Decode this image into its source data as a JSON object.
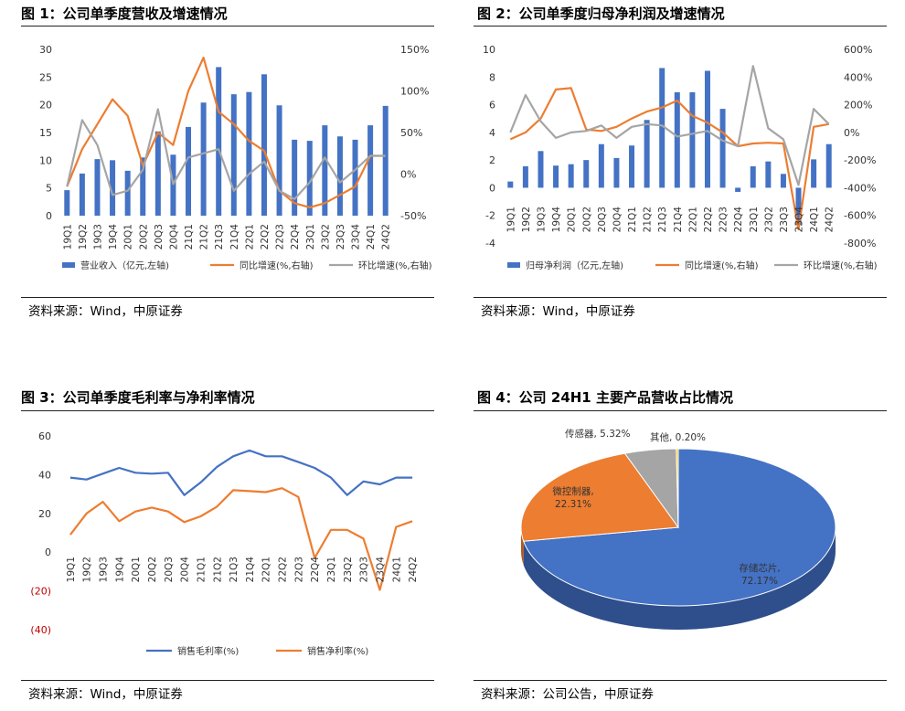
{
  "charts": [
    {
      "id": "fig1",
      "title": "图 1：公司单季度营收及增速情况",
      "source": "资料来源：Wind，中原证券",
      "chart_data": {
        "type": "bar",
        "categories": [
          "19Q1",
          "19Q2",
          "19Q3",
          "19Q4",
          "20Q1",
          "20Q2",
          "20Q3",
          "20Q4",
          "21Q1",
          "21Q2",
          "21Q3",
          "21Q4",
          "22Q1",
          "22Q2",
          "22Q3",
          "22Q4",
          "23Q1",
          "23Q2",
          "23Q3",
          "23Q4",
          "24Q1",
          "24Q2"
        ],
        "y_left": {
          "ticks": [
            "0",
            "5",
            "10",
            "15",
            "20",
            "25",
            "30"
          ],
          "range": [
            0,
            30
          ]
        },
        "y_right": {
          "ticks": [
            "-50%",
            "0%",
            "50%",
            "100%",
            "150%"
          ],
          "range": [
            -50,
            150
          ]
        },
        "series": [
          {
            "name": "营业收入（亿元,左轴)",
            "kind": "bar",
            "axis": "left",
            "color": "#4472C4",
            "values": [
              4.6,
              7.6,
              10.2,
              10.0,
              8.1,
              10.5,
              15.2,
              11.0,
              16.0,
              20.4,
              26.8,
              21.9,
              22.3,
              25.5,
              19.9,
              13.7,
              13.5,
              16.3,
              14.3,
              13.7,
              16.3,
              19.8
            ]
          },
          {
            "name": "同比增速(%,右轴)",
            "kind": "line",
            "axis": "right",
            "color": "#ED7D31",
            "values": [
              -15,
              30,
              60,
              90,
              70,
              10,
              50,
              35,
              100,
              140,
              75,
              60,
              40,
              28,
              -20,
              -35,
              -40,
              -35,
              -25,
              -15,
              22,
              22
            ]
          },
          {
            "name": "环比增速(%,右轴)",
            "kind": "line",
            "axis": "right",
            "color": "#A5A5A5",
            "values": [
              -15,
              65,
              35,
              -25,
              -20,
              5,
              78,
              -12,
              20,
              25,
              30,
              -20,
              0,
              15,
              -20,
              -30,
              -10,
              20,
              -10,
              5,
              22,
              22
            ]
          }
        ]
      }
    },
    {
      "id": "fig2",
      "title": "图 2：公司单季度归母净利润及增速情况",
      "source": "资料来源：Wind，中原证券",
      "chart_data": {
        "type": "bar",
        "categories": [
          "19Q1",
          "19Q2",
          "19Q3",
          "19Q4",
          "20Q1",
          "20Q2",
          "20Q3",
          "20Q4",
          "21Q1",
          "21Q2",
          "21Q3",
          "21Q4",
          "22Q1",
          "22Q2",
          "22Q3",
          "22Q4",
          "23Q1",
          "23Q2",
          "23Q3",
          "23Q4",
          "24Q1",
          "24Q2"
        ],
        "y_left": {
          "ticks": [
            "-4",
            "-2",
            "0",
            "2",
            "4",
            "6",
            "8",
            "10"
          ],
          "range": [
            -4,
            10
          ]
        },
        "y_right": {
          "ticks": [
            "-800%",
            "-600%",
            "-400%",
            "-200%",
            "0%",
            "200%",
            "400%",
            "600%"
          ],
          "range": [
            -800,
            600
          ]
        },
        "series": [
          {
            "name": "归母净利润（亿元,左轴)",
            "kind": "bar",
            "axis": "left",
            "color": "#4472C4",
            "values": [
              0.45,
              1.55,
              2.65,
              1.6,
              1.7,
              2.0,
              3.15,
              2.15,
              3.05,
              4.9,
              8.65,
              6.9,
              6.9,
              8.45,
              5.7,
              -0.3,
              1.55,
              1.9,
              1.0,
              -2.7,
              2.05,
              3.15
            ]
          },
          {
            "name": "同比增速(%,右轴)",
            "kind": "line",
            "axis": "right",
            "color": "#ED7D31",
            "values": [
              -50,
              0,
              100,
              310,
              320,
              20,
              10,
              40,
              100,
              150,
              180,
              230,
              120,
              70,
              0,
              -100,
              -80,
              -75,
              -80,
              -700,
              40,
              60
            ]
          },
          {
            "name": "环比增速(%,右轴)",
            "kind": "line",
            "axis": "right",
            "color": "#A5A5A5",
            "values": [
              0,
              270,
              80,
              -40,
              0,
              10,
              50,
              -40,
              40,
              60,
              50,
              -30,
              -10,
              10,
              -60,
              -100,
              480,
              30,
              -50,
              -380,
              170,
              60
            ]
          }
        ]
      }
    },
    {
      "id": "fig3",
      "title": "图 3：公司单季度毛利率与净利率情况",
      "source": "资料来源：Wind，中原证券",
      "chart_data": {
        "type": "line",
        "categories": [
          "19Q1",
          "19Q2",
          "19Q3",
          "19Q4",
          "20Q1",
          "20Q2",
          "20Q3",
          "20Q4",
          "21Q1",
          "21Q2",
          "21Q3",
          "21Q4",
          "22Q1",
          "22Q2",
          "22Q3",
          "22Q4",
          "23Q1",
          "23Q2",
          "23Q3",
          "23Q4",
          "24Q1",
          "24Q2"
        ],
        "y_left": {
          "ticks": [
            "(40)",
            "(20)",
            "0",
            "20",
            "40",
            "60"
          ],
          "range": [
            -40,
            60
          ]
        },
        "series": [
          {
            "name": "销售毛利率(%)",
            "color": "#4472C4",
            "values": [
              38.5,
              37.5,
              40.5,
              43.5,
              41,
              40.5,
              41,
              29.5,
              36,
              44,
              49.5,
              52.5,
              49.5,
              49.5,
              46.5,
              43.5,
              38.5,
              29.5,
              36.5,
              35,
              38.5,
              38.5
            ]
          },
          {
            "name": "销售净利率(%)",
            "color": "#ED7D31",
            "values": [
              9,
              20,
              26,
              16,
              21,
              23,
              21,
              15.5,
              18.5,
              23.5,
              32,
              31.5,
              31,
              33,
              28.5,
              -3,
              11.5,
              11.5,
              7,
              -19.5,
              13,
              16
            ]
          }
        ]
      }
    },
    {
      "id": "fig4",
      "title": "图 4：公司 24H1 主要产品营收占比情况",
      "source": "资料来源：公司公告，中原证券",
      "chart_data": {
        "type": "pie",
        "slices": [
          {
            "name": "存储芯片",
            "percent_label": "72.17%",
            "value": 72.17,
            "color": "#4472C4"
          },
          {
            "name": "微控制器",
            "percent_label": "22.31%",
            "value": 22.31,
            "color": "#ED7D31"
          },
          {
            "name": "传感器",
            "percent_label": "5.32%",
            "value": 5.32,
            "color": "#A5A5A5"
          },
          {
            "name": "其他",
            "percent_label": "0.20%",
            "value": 0.2,
            "color": "#FFC000"
          }
        ],
        "labels": {
          "sensor": "传感器, 5.32%",
          "other": "其他, 0.20%",
          "mcu_name": "微控制器,",
          "mcu_pct": "22.31%",
          "storage_name": "存储芯片,",
          "storage_pct": "72.17%"
        }
      }
    }
  ]
}
